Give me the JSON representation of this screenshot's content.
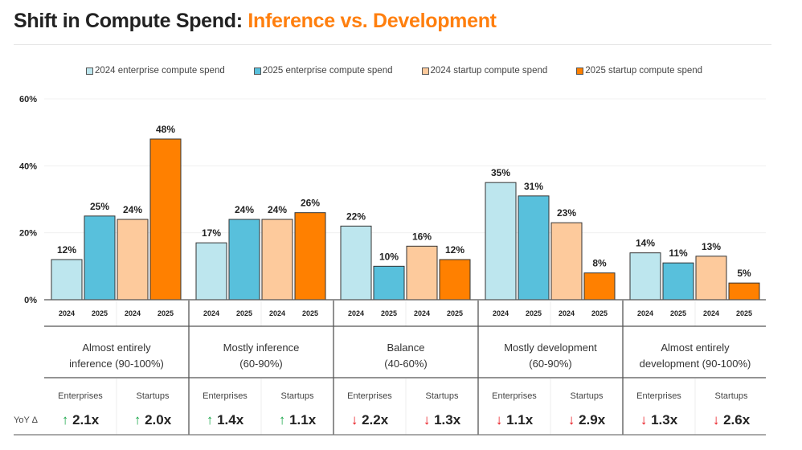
{
  "title": {
    "main": "Shift in Compute Spend:",
    "accent": "Inference vs. Development"
  },
  "colors": {
    "ent2024": "#bde6ee",
    "ent2025": "#58c0dc",
    "st2024": "#fdca9c",
    "st2025": "#ff8000",
    "up": "#1aa64a",
    "down": "#e8141b",
    "accent": "#ff7f0e"
  },
  "chart_data": {
    "type": "bar",
    "title": "Shift in Compute Spend: Inference vs. Development",
    "ylim": [
      0,
      60
    ],
    "yticks": [
      "0%",
      "20%",
      "40%",
      "60%"
    ],
    "ytick_values": [
      0,
      20,
      40,
      60
    ],
    "legend_position": "top",
    "bar_years": [
      "2024",
      "2025",
      "2024",
      "2025"
    ],
    "categories": [
      "Almost entirely inference (90-100%)",
      "Mostly inference (60-90%)",
      "Balance (40-60%)",
      "Mostly development (60-90%)",
      "Almost entirely development (90-100%)"
    ],
    "category_lines": [
      [
        "Almost entirely",
        "inference (90-100%)"
      ],
      [
        "Mostly inference",
        "(60-90%)"
      ],
      [
        "Balance",
        "(40-60%)"
      ],
      [
        "Mostly development",
        "(60-90%)"
      ],
      [
        "Almost entirely",
        "development (90-100%)"
      ]
    ],
    "series": [
      {
        "name": "2024 enterprise compute spend",
        "values": [
          12,
          17,
          22,
          35,
          14
        ]
      },
      {
        "name": "2025 enterprise compute spend",
        "values": [
          25,
          24,
          10,
          31,
          11
        ]
      },
      {
        "name": "2024 startup compute spend",
        "values": [
          24,
          24,
          16,
          23,
          13
        ]
      },
      {
        "name": "2025 startup compute spend",
        "values": [
          48,
          26,
          12,
          8,
          5
        ]
      }
    ]
  },
  "yoy": {
    "label": "YoY Δ",
    "segments": [
      "Enterprises",
      "Startups"
    ],
    "values": [
      [
        {
          "dir": "up",
          "arrow": "↑",
          "text": "2.1x"
        },
        {
          "dir": "up",
          "arrow": "↑",
          "text": "2.0x"
        }
      ],
      [
        {
          "dir": "up",
          "arrow": "↑",
          "text": "1.4x"
        },
        {
          "dir": "up",
          "arrow": "↑",
          "text": "1.1x"
        }
      ],
      [
        {
          "dir": "down",
          "arrow": "↓",
          "text": "2.2x"
        },
        {
          "dir": "down",
          "arrow": "↓",
          "text": "1.3x"
        }
      ],
      [
        {
          "dir": "down",
          "arrow": "↓",
          "text": "1.1x"
        },
        {
          "dir": "down",
          "arrow": "↓",
          "text": "2.9x"
        }
      ],
      [
        {
          "dir": "down",
          "arrow": "↓",
          "text": "1.3x"
        },
        {
          "dir": "down",
          "arrow": "↓",
          "text": "2.6x"
        }
      ]
    ]
  }
}
